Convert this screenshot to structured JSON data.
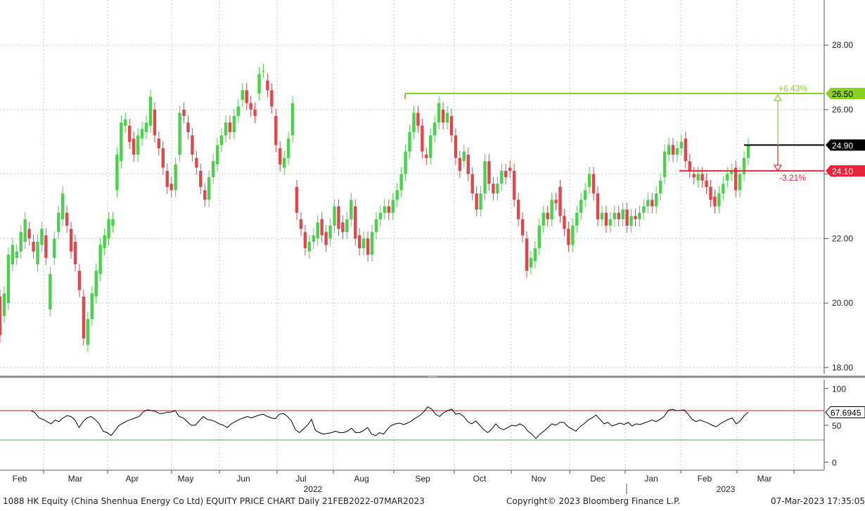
{
  "chart_data": [
    {
      "type": "candlestick",
      "panel": "price",
      "yticks": [
        18,
        20,
        22,
        24,
        26,
        28
      ],
      "ylim": [
        17.8,
        29.4
      ],
      "grid": true,
      "colors": {
        "up": "#4cd14c",
        "down": "#e0474c",
        "resistance": "#8ccf28",
        "support": "#e8253a",
        "last": "#000000"
      },
      "candles": [
        [
          20.2,
          19.0
        ],
        [
          19.6,
          20.3
        ],
        [
          20.0,
          21.5
        ],
        [
          21.2,
          21.8
        ],
        [
          21.4,
          21.6
        ],
        [
          21.6,
          22.2
        ],
        [
          21.9,
          22.6
        ],
        [
          22.3,
          22.0
        ],
        [
          21.9,
          21.6
        ],
        [
          21.2,
          21.9
        ],
        [
          21.8,
          22.3
        ],
        [
          22.1,
          21.4
        ],
        [
          19.8,
          20.9
        ],
        [
          21.4,
          22.0
        ],
        [
          22.2,
          22.8
        ],
        [
          22.6,
          23.4
        ],
        [
          22.8,
          22.4
        ],
        [
          22.3,
          21.6
        ],
        [
          21.9,
          21.2
        ],
        [
          21.0,
          20.4
        ],
        [
          20.2,
          18.9
        ],
        [
          18.7,
          19.5
        ],
        [
          19.5,
          20.3
        ],
        [
          20.2,
          21.0
        ],
        [
          20.9,
          21.8
        ],
        [
          21.7,
          22.1
        ],
        [
          22.0,
          22.6
        ],
        [
          22.4,
          22.6
        ],
        [
          23.5,
          24.6
        ],
        [
          24.4,
          25.6
        ],
        [
          25.5,
          25.7
        ],
        [
          25.5,
          25.0
        ],
        [
          25.1,
          24.6
        ],
        [
          24.6,
          25.2
        ],
        [
          25.1,
          25.4
        ],
        [
          25.3,
          25.6
        ],
        [
          25.5,
          26.4
        ],
        [
          26.0,
          25.2
        ],
        [
          25.1,
          24.8
        ],
        [
          24.8,
          24.2
        ],
        [
          24.1,
          23.6
        ],
        [
          23.7,
          23.5
        ],
        [
          23.5,
          24.3
        ],
        [
          24.6,
          25.9
        ],
        [
          26.0,
          25.8
        ],
        [
          25.6,
          25.3
        ],
        [
          25.2,
          24.6
        ],
        [
          24.5,
          24.2
        ],
        [
          24.1,
          23.6
        ],
        [
          23.5,
          23.2
        ],
        [
          23.2,
          23.9
        ],
        [
          23.9,
          24.4
        ],
        [
          24.3,
          24.9
        ],
        [
          24.9,
          25.2
        ],
        [
          25.2,
          25.6
        ],
        [
          25.6,
          25.3
        ],
        [
          25.3,
          25.8
        ],
        [
          25.8,
          26.1
        ],
        [
          26.3,
          26.6
        ],
        [
          26.6,
          26.2
        ],
        [
          26.2,
          26.0
        ],
        [
          26.0,
          25.8
        ],
        [
          26.5,
          27.1
        ],
        [
          27.2,
          27.2
        ],
        [
          26.9,
          26.6
        ],
        [
          26.6,
          26.1
        ],
        [
          25.8,
          24.9
        ],
        [
          24.8,
          24.3
        ],
        [
          24.2,
          24.5
        ],
        [
          24.5,
          25.1
        ],
        [
          25.2,
          26.2
        ],
        [
          23.6,
          22.8
        ],
        [
          22.6,
          22.3
        ],
        [
          22.2,
          21.7
        ],
        [
          21.6,
          21.9
        ],
        [
          21.9,
          22.1
        ],
        [
          22.0,
          22.5
        ],
        [
          22.6,
          22.1
        ],
        [
          22.2,
          21.8
        ],
        [
          22.0,
          22.4
        ],
        [
          22.4,
          23.0
        ],
        [
          23.0,
          22.3
        ],
        [
          22.5,
          22.2
        ],
        [
          22.2,
          22.6
        ],
        [
          22.6,
          23.2
        ],
        [
          23.0,
          22.0
        ],
        [
          22.1,
          21.7
        ],
        [
          21.7,
          22.0
        ],
        [
          22.0,
          21.5
        ],
        [
          21.5,
          22.2
        ],
        [
          22.2,
          22.6
        ],
        [
          22.6,
          22.8
        ],
        [
          22.8,
          23.0
        ],
        [
          23.0,
          22.8
        ],
        [
          22.8,
          23.2
        ],
        [
          23.2,
          23.5
        ],
        [
          23.5,
          24.0
        ],
        [
          24.0,
          24.7
        ],
        [
          24.7,
          25.3
        ],
        [
          25.3,
          25.9
        ],
        [
          25.9,
          25.5
        ],
        [
          25.5,
          24.7
        ],
        [
          24.6,
          24.5
        ],
        [
          24.5,
          25.2
        ],
        [
          25.2,
          25.6
        ],
        [
          25.6,
          26.2
        ],
        [
          26.0,
          25.6
        ],
        [
          25.6,
          25.9
        ],
        [
          25.8,
          25.2
        ],
        [
          25.2,
          24.5
        ],
        [
          24.5,
          24.1
        ],
        [
          24.4,
          24.7
        ],
        [
          24.6,
          24.0
        ],
        [
          24.0,
          23.4
        ],
        [
          23.4,
          22.9
        ],
        [
          22.9,
          23.4
        ],
        [
          23.4,
          24.4
        ],
        [
          24.4,
          23.7
        ],
        [
          23.7,
          23.4
        ],
        [
          23.4,
          23.7
        ],
        [
          23.7,
          24.1
        ],
        [
          24.1,
          23.9
        ],
        [
          24.2,
          24.1
        ],
        [
          24.1,
          23.2
        ],
        [
          23.2,
          22.6
        ],
        [
          22.6,
          22.1
        ],
        [
          22.0,
          21.0
        ],
        [
          21.1,
          21.4
        ],
        [
          21.3,
          21.7
        ],
        [
          21.7,
          22.4
        ],
        [
          22.4,
          22.8
        ],
        [
          22.8,
          22.6
        ],
        [
          22.6,
          23.2
        ],
        [
          23.2,
          23.1
        ],
        [
          23.6,
          22.7
        ],
        [
          22.7,
          22.3
        ],
        [
          22.3,
          21.8
        ],
        [
          21.8,
          22.4
        ],
        [
          22.4,
          22.8
        ],
        [
          22.8,
          23.2
        ],
        [
          23.2,
          23.5
        ],
        [
          23.6,
          24.0
        ],
        [
          24.0,
          23.4
        ],
        [
          23.4,
          22.6
        ],
        [
          22.6,
          22.8
        ],
        [
          22.8,
          22.4
        ],
        [
          22.4,
          22.6
        ],
        [
          22.6,
          22.8
        ],
        [
          22.8,
          22.6
        ],
        [
          22.6,
          22.9
        ],
        [
          22.9,
          22.4
        ],
        [
          22.4,
          22.7
        ],
        [
          22.7,
          22.6
        ],
        [
          22.6,
          22.8
        ],
        [
          22.8,
          23.0
        ],
        [
          23.0,
          23.2
        ],
        [
          23.2,
          23.0
        ],
        [
          23.0,
          23.4
        ],
        [
          23.4,
          23.8
        ],
        [
          23.9,
          24.7
        ],
        [
          24.6,
          24.9
        ],
        [
          24.9,
          24.6
        ],
        [
          24.6,
          24.8
        ],
        [
          24.8,
          25.0
        ],
        [
          25.1,
          24.4
        ],
        [
          24.4,
          24.1
        ],
        [
          24.0,
          23.9
        ],
        [
          23.8,
          24.0
        ],
        [
          24.0,
          23.8
        ],
        [
          23.8,
          23.6
        ],
        [
          23.6,
          23.2
        ],
        [
          23.3,
          23.0
        ],
        [
          23.0,
          23.4
        ],
        [
          23.4,
          23.7
        ],
        [
          23.8,
          24.0
        ],
        [
          24.0,
          24.1
        ],
        [
          24.2,
          23.5
        ],
        [
          23.5,
          24.0
        ],
        [
          24.0,
          24.5
        ],
        [
          24.5,
          24.9
        ]
      ],
      "lines": [
        {
          "name": "resistance",
          "value": 26.5,
          "label": "26.50",
          "change": "+6.43%"
        },
        {
          "name": "last",
          "value": 24.9,
          "label": "24.90"
        },
        {
          "name": "support",
          "value": 24.1,
          "label": "24.10",
          "change": "-3.21%"
        }
      ]
    },
    {
      "type": "line",
      "panel": "rsi",
      "yticks": [
        0,
        50,
        100
      ],
      "ylim": [
        -10,
        112
      ],
      "upper_band": 70,
      "lower_band": 30,
      "last_label": "67.6945",
      "colors": {
        "line": "#000000",
        "upper": "#c62828",
        "lower": "#4caf50"
      },
      "values": [
        70,
        67,
        60,
        58,
        55,
        52,
        57,
        55,
        60,
        63,
        62,
        57,
        47,
        55,
        60,
        62,
        58,
        52,
        42,
        40,
        36,
        43,
        50,
        53,
        56,
        58,
        60,
        62,
        68,
        71,
        70,
        69,
        66,
        66,
        68,
        68,
        70,
        62,
        60,
        55,
        50,
        50,
        56,
        62,
        58,
        57,
        55,
        52,
        50,
        47,
        52,
        55,
        58,
        60,
        62,
        60,
        62,
        64,
        65,
        62,
        60,
        59,
        65,
        66,
        62,
        56,
        44,
        40,
        45,
        50,
        58,
        43,
        40,
        38,
        39,
        40,
        42,
        40,
        40,
        42,
        46,
        40,
        40,
        43,
        47,
        38,
        36,
        40,
        38,
        45,
        50,
        52,
        53,
        51,
        53,
        56,
        60,
        63,
        68,
        75,
        72,
        65,
        62,
        67,
        70,
        72,
        65,
        66,
        62,
        55,
        52,
        56,
        50,
        44,
        40,
        45,
        52,
        46,
        44,
        47,
        50,
        49,
        52,
        49,
        42,
        38,
        32,
        38,
        42,
        47,
        52,
        50,
        54,
        54,
        48,
        45,
        42,
        48,
        52,
        57,
        60,
        64,
        58,
        52,
        54,
        49,
        51,
        53,
        51,
        54,
        49,
        52,
        51,
        53,
        55,
        57,
        55,
        58,
        62,
        70,
        72,
        70,
        70,
        71,
        65,
        58,
        55,
        57,
        55,
        53,
        50,
        48,
        52,
        55,
        58,
        60,
        52,
        56,
        63,
        67.7
      ]
    }
  ],
  "axis": {
    "price_ticks": [
      "28.00",
      "26.00",
      "24.00",
      "22.00",
      "20.00",
      "18.00"
    ],
    "rsi_ticks": [
      "100",
      "50",
      "0"
    ],
    "months": [
      "Feb",
      "Mar",
      "Apr",
      "May",
      "Jun",
      "Jul",
      "Aug",
      "Sep",
      "Oct",
      "Nov",
      "Dec",
      "Jan",
      "Feb",
      "Mar"
    ],
    "years": [
      "2022",
      "2023"
    ]
  },
  "footer": {
    "left": "1088 HK Equity (China Shenhua Energy Co Ltd) EQUITY PRICE CHART  Daily 21FEB2022-07MAR2023",
    "center": "Copyright© 2023 Bloomberg Finance L.P.",
    "right": "07-Mar-2023 17:35:05"
  }
}
